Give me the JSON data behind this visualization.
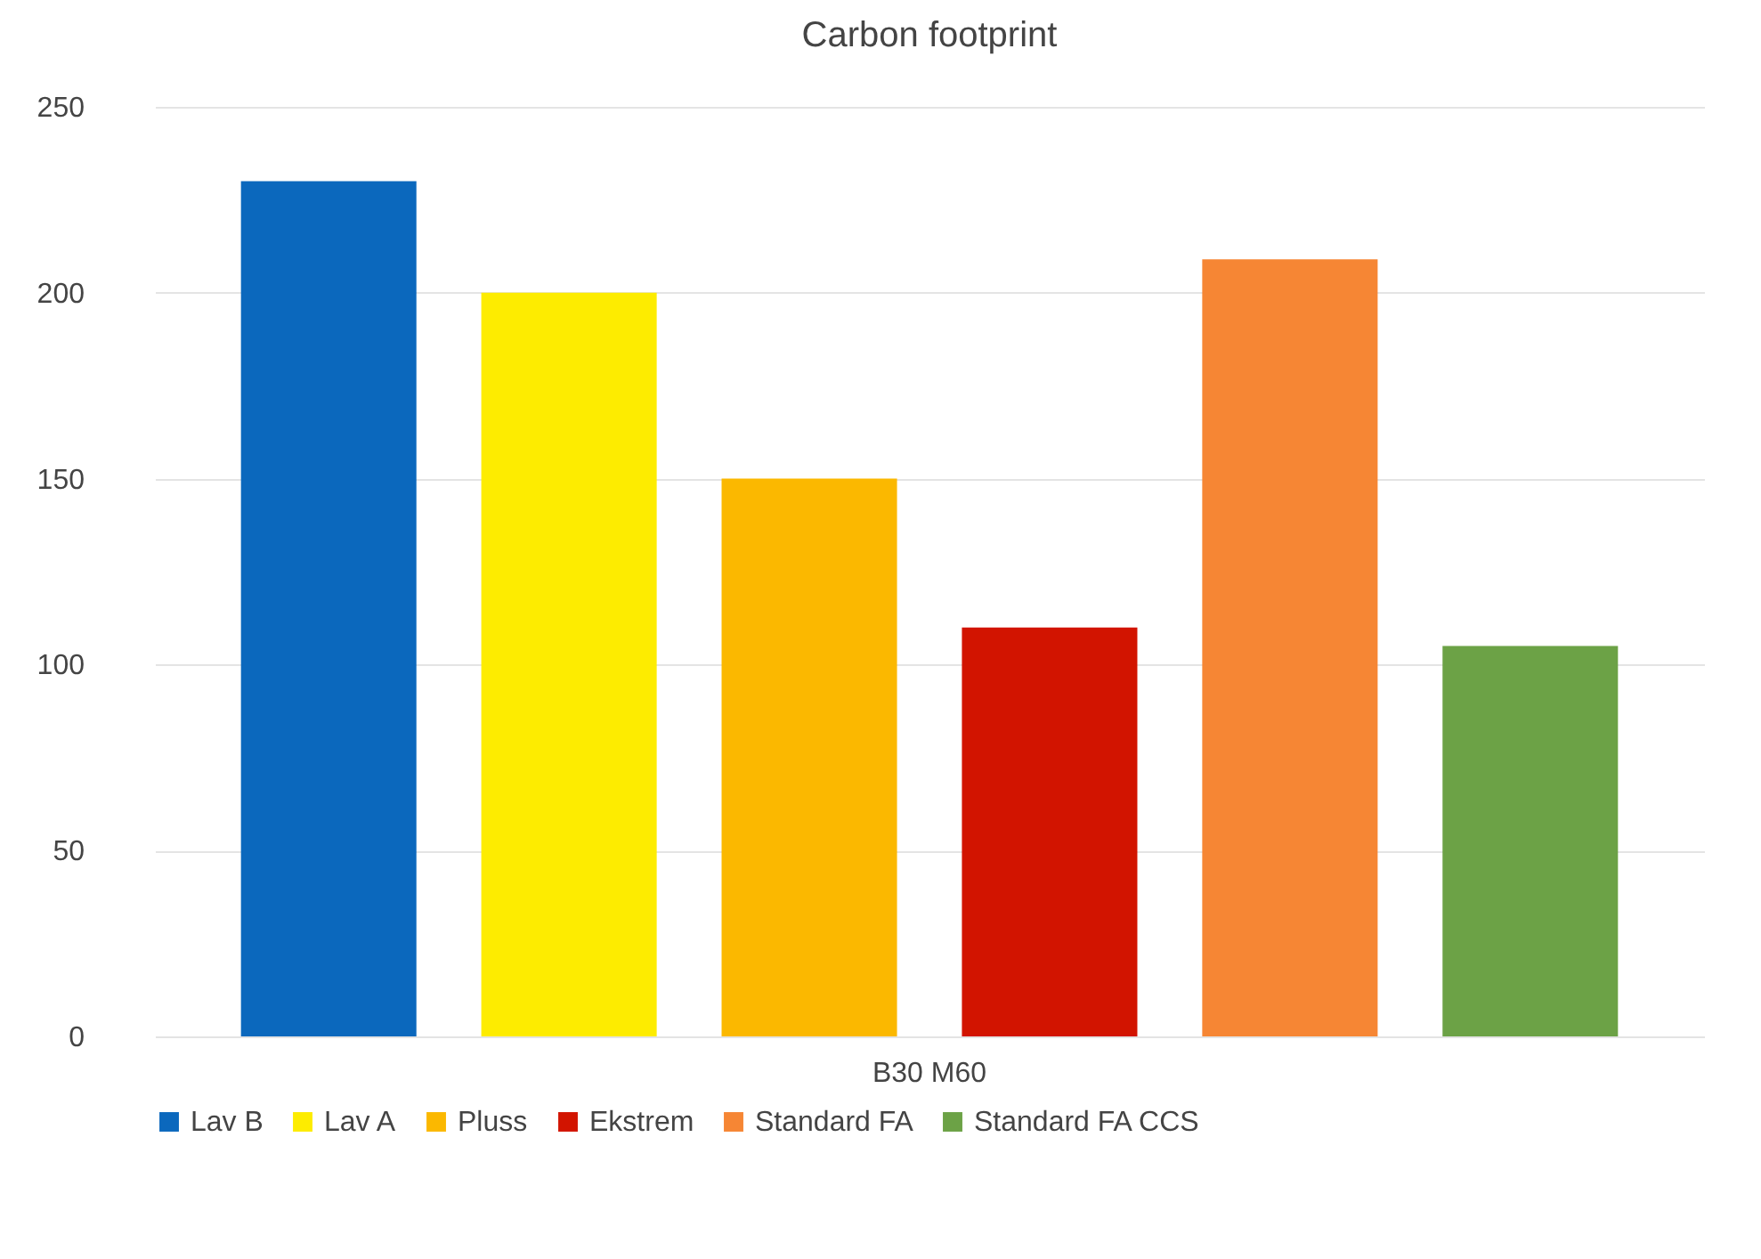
{
  "chart_data": {
    "type": "bar",
    "title": "Carbon footprint",
    "categories": [
      "B30 M60"
    ],
    "series": [
      {
        "name": "Lav B",
        "color": "#0b68bd",
        "values": [
          230
        ]
      },
      {
        "name": "Lav A",
        "color": "#fdec00",
        "values": [
          200
        ]
      },
      {
        "name": "Pluss",
        "color": "#fbb800",
        "values": [
          150
        ]
      },
      {
        "name": "Ekstrem",
        "color": "#d21400",
        "values": [
          110
        ]
      },
      {
        "name": "Standard FA",
        "color": "#f68634",
        "values": [
          209
        ]
      },
      {
        "name": "Standard FA CCS",
        "color": "#6ca246",
        "values": [
          105
        ]
      }
    ],
    "ylim": [
      0,
      250
    ],
    "yticks": [
      0,
      50,
      100,
      150,
      200,
      250
    ],
    "grid": "y",
    "legend": "bottom"
  }
}
